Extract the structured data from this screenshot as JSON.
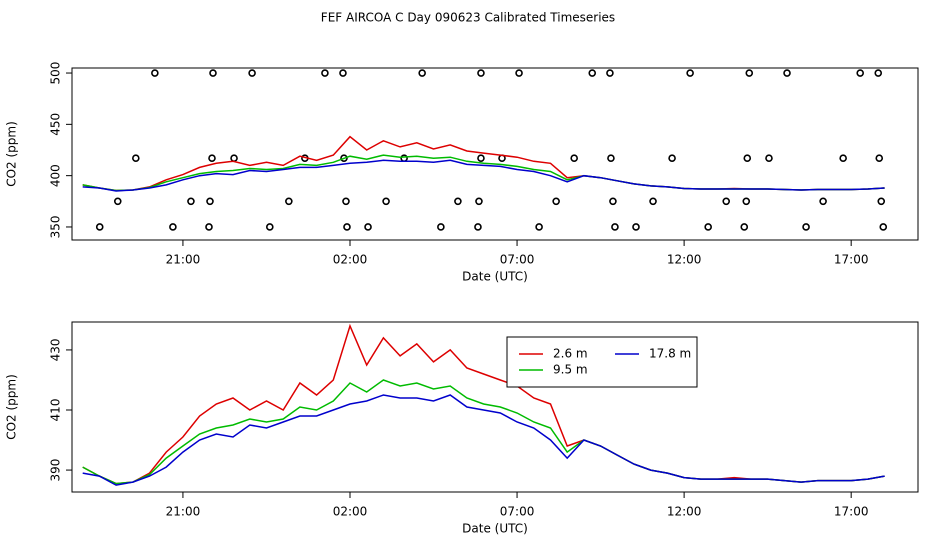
{
  "chart_data": [
    {
      "type": "line",
      "title": "FEF AIRCOA C  Day 090623  Calibrated Timeseries",
      "xlabel": "Date (UTC)",
      "ylabel": "CO2 (ppm)",
      "xlim": [
        17.68,
        43.0
      ],
      "xticks": [
        {
          "value": 21,
          "label": "21:00"
        },
        {
          "value": 26,
          "label": "02:00"
        },
        {
          "value": 31,
          "label": "07:00"
        },
        {
          "value": 36,
          "label": "12:00"
        },
        {
          "value": 41,
          "label": "17:00"
        }
      ],
      "ylim": [
        337.3,
        504.9
      ],
      "yticks": [
        350,
        400,
        450,
        500
      ],
      "x": [
        18,
        18.5,
        19,
        19.5,
        20,
        20.5,
        21,
        21.5,
        22,
        22.5,
        23,
        23.5,
        24,
        24.5,
        25,
        25.5,
        26,
        26.5,
        27,
        27.5,
        28,
        28.5,
        29,
        29.5,
        30,
        30.5,
        31,
        31.5,
        32,
        32.5,
        33,
        33.5,
        34,
        34.5,
        35,
        35.5,
        36,
        36.5,
        37,
        37.5,
        38,
        38.5,
        39,
        39.5,
        40,
        40.5,
        41,
        41.5,
        42
      ],
      "series": [
        {
          "name": "2.6 m",
          "color": "#dd0000",
          "values": [
            391,
            388,
            385.5,
            386,
            389,
            396,
            401,
            408,
            412,
            414,
            410,
            413,
            410,
            419,
            415,
            420,
            438,
            425,
            434,
            428,
            432,
            426,
            430,
            424,
            422,
            420,
            418,
            414,
            412,
            398,
            400,
            398,
            395,
            392,
            390,
            389,
            387.5,
            387,
            387,
            387.5,
            387,
            387,
            386.5,
            386,
            386.5,
            386.5,
            386.5,
            387,
            388
          ]
        },
        {
          "name": "9.5 m",
          "color": "#00bb00",
          "values": [
            391,
            388,
            385.5,
            386,
            388.5,
            394,
            398,
            402,
            404,
            405,
            407,
            406,
            407,
            411,
            410,
            413,
            419,
            416,
            420,
            418,
            419,
            417,
            418,
            414,
            412,
            411,
            409,
            406,
            404,
            396,
            400,
            398,
            395,
            392,
            390,
            389,
            387.5,
            387,
            387,
            387,
            387,
            387,
            386.5,
            386,
            386.5,
            386.5,
            386.5,
            387,
            388
          ]
        },
        {
          "name": "17.8 m",
          "color": "#0000cc",
          "values": [
            389,
            388,
            385,
            386,
            388,
            391,
            396,
            400,
            402,
            401,
            405,
            404,
            406,
            408,
            408,
            410,
            412,
            413,
            415,
            414,
            414,
            413,
            415,
            411,
            410,
            409,
            406,
            404,
            400,
            394,
            400,
            398,
            395,
            392,
            390,
            389,
            387.5,
            387,
            387,
            387,
            387,
            387,
            386.5,
            386,
            386.5,
            386.5,
            386.5,
            387,
            388
          ]
        }
      ],
      "points": {
        "color": "#000000",
        "x": [
          20.16,
          21.9,
          23.07,
          25.25,
          25.79,
          28.16,
          29.92,
          31.06,
          33.25,
          33.78,
          36.18,
          37.95,
          39.08,
          41.27,
          41.81,
          19.59,
          21.87,
          22.53,
          24.65,
          25.82,
          27.62,
          29.92,
          30.55,
          32.71,
          33.81,
          35.64,
          37.89,
          38.54,
          40.76,
          41.84,
          19.05,
          21.24,
          21.81,
          24.17,
          25.88,
          27.08,
          29.23,
          29.86,
          32.17,
          33.87,
          35.07,
          37.26,
          37.86,
          40.16,
          41.9,
          18.51,
          20.7,
          21.78,
          23.6,
          25.91,
          26.54,
          28.72,
          29.83,
          31.66,
          33.93,
          34.56,
          36.72,
          37.8,
          39.65,
          41.96
        ],
        "values": [
          500,
          500,
          500,
          500,
          500,
          500,
          500,
          500,
          500,
          500,
          500,
          500,
          500,
          500,
          500,
          417,
          417,
          417,
          417,
          417,
          417,
          417,
          417,
          417,
          417,
          417,
          417,
          417,
          417,
          417,
          375,
          375,
          375,
          375,
          375,
          375,
          375,
          375,
          375,
          375,
          375,
          375,
          375,
          375,
          375,
          350,
          350,
          350,
          350,
          350,
          350,
          350,
          350,
          350,
          350,
          350,
          350,
          350,
          350,
          350
        ]
      }
    },
    {
      "type": "line",
      "xlabel": "Date (UTC)",
      "ylabel": "CO2 (ppm)",
      "legend": "top-center",
      "xlim": [
        17.68,
        43.0
      ],
      "xticks": [
        {
          "value": 21,
          "label": "21:00"
        },
        {
          "value": 26,
          "label": "02:00"
        },
        {
          "value": 31,
          "label": "07:00"
        },
        {
          "value": 36,
          "label": "12:00"
        },
        {
          "value": 41,
          "label": "17:00"
        }
      ],
      "ylim": [
        382.7,
        439.3
      ],
      "yticks": [
        390,
        410,
        430
      ],
      "x": [
        18,
        18.5,
        19,
        19.5,
        20,
        20.5,
        21,
        21.5,
        22,
        22.5,
        23,
        23.5,
        24,
        24.5,
        25,
        25.5,
        26,
        26.5,
        27,
        27.5,
        28,
        28.5,
        29,
        29.5,
        30,
        30.5,
        31,
        31.5,
        32,
        32.5,
        33,
        33.5,
        34,
        34.5,
        35,
        35.5,
        36,
        36.5,
        37,
        37.5,
        38,
        38.5,
        39,
        39.5,
        40,
        40.5,
        41,
        41.5,
        42
      ],
      "series": [
        {
          "name": "2.6 m",
          "color": "#dd0000",
          "values": [
            391,
            388,
            385.5,
            386,
            389,
            396,
            401,
            408,
            412,
            414,
            410,
            413,
            410,
            419,
            415,
            420,
            438,
            425,
            434,
            428,
            432,
            426,
            430,
            424,
            422,
            420,
            418,
            414,
            412,
            398,
            400,
            398,
            395,
            392,
            390,
            389,
            387.5,
            387,
            387,
            387.5,
            387,
            387,
            386.5,
            386,
            386.5,
            386.5,
            386.5,
            387,
            388
          ]
        },
        {
          "name": "9.5 m",
          "color": "#00bb00",
          "values": [
            391,
            388,
            385.5,
            386,
            388.5,
            394,
            398,
            402,
            404,
            405,
            407,
            406,
            407,
            411,
            410,
            413,
            419,
            416,
            420,
            418,
            419,
            417,
            418,
            414,
            412,
            411,
            409,
            406,
            404,
            396,
            400,
            398,
            395,
            392,
            390,
            389,
            387.5,
            387,
            387,
            387,
            387,
            387,
            386.5,
            386,
            386.5,
            386.5,
            386.5,
            387,
            388
          ]
        },
        {
          "name": "17.8 m",
          "color": "#0000cc",
          "values": [
            389,
            388,
            385,
            386,
            388,
            391,
            396,
            400,
            402,
            401,
            405,
            404,
            406,
            408,
            408,
            410,
            412,
            413,
            415,
            414,
            414,
            413,
            415,
            411,
            410,
            409,
            406,
            404,
            400,
            394,
            400,
            398,
            395,
            392,
            390,
            389,
            387.5,
            387,
            387,
            387,
            387,
            387,
            386.5,
            386,
            386.5,
            386.5,
            386.5,
            387,
            388
          ]
        }
      ]
    }
  ]
}
